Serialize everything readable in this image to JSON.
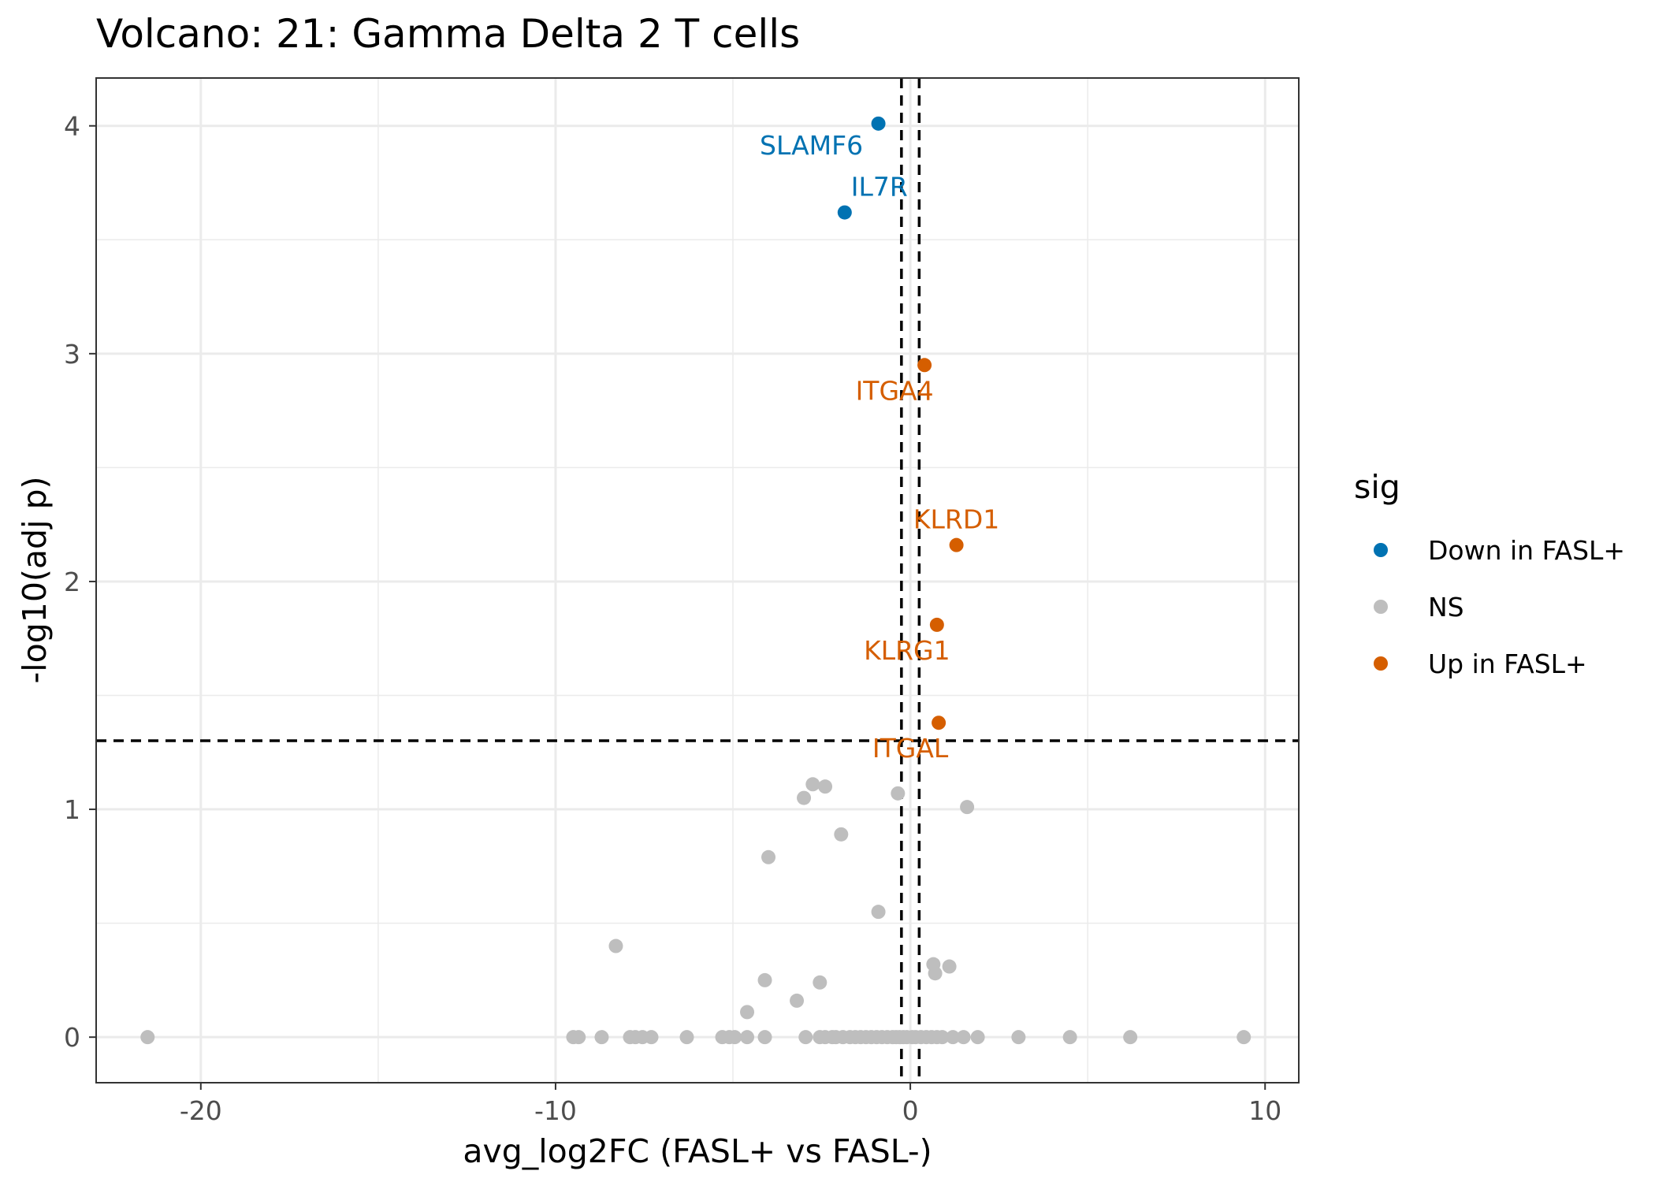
{
  "chart_data": {
    "type": "scatter",
    "title": "Volcano: 21: Gamma Delta 2 T cells",
    "xlabel": "avg_log2FC (FASL+ vs FASL-)",
    "ylabel": "-log10(adj p)",
    "xlim": [
      -22.95,
      10.95
    ],
    "ylim": [
      -0.2,
      4.21
    ],
    "x_ticks": [
      -20,
      -10,
      0,
      10
    ],
    "x_tick_labels": [
      "-20",
      "-10",
      "0",
      "10"
    ],
    "y_ticks": [
      0,
      1,
      2,
      3,
      4
    ],
    "y_tick_labels": [
      "0",
      "1",
      "2",
      "3",
      "4"
    ],
    "grid": true,
    "thresholds": {
      "log2fc": [
        -0.25,
        0.25
      ],
      "neg_log10_p": 1.301
    },
    "legend": {
      "title": "sig",
      "position": "right"
    },
    "colors": {
      "Down in FASL+": "#0072B2",
      "NS": "#BEBEBE",
      "Up in FASL+": "#D55E00",
      "gridline": "#EBEBEB",
      "panel_border": "#333333",
      "threshold_line": "#000000"
    },
    "series": [
      {
        "name": "Down in FASL+",
        "points": [
          {
            "x": -0.9,
            "y": 4.01,
            "label": "SLAMF6"
          },
          {
            "x": -1.85,
            "y": 3.62,
            "label": "IL7R"
          }
        ]
      },
      {
        "name": "NS",
        "points": [
          {
            "x": -21.5,
            "y": 0
          },
          {
            "x": -9.5,
            "y": 0
          },
          {
            "x": -9.35,
            "y": 0
          },
          {
            "x": -8.7,
            "y": 0
          },
          {
            "x": -7.9,
            "y": 0
          },
          {
            "x": -7.75,
            "y": 0
          },
          {
            "x": -7.55,
            "y": 0
          },
          {
            "x": -7.3,
            "y": 0
          },
          {
            "x": -6.3,
            "y": 0
          },
          {
            "x": -5.3,
            "y": 0
          },
          {
            "x": -5.1,
            "y": 0
          },
          {
            "x": -4.95,
            "y": 0
          },
          {
            "x": -4.6,
            "y": 0
          },
          {
            "x": -4.1,
            "y": 0
          },
          {
            "x": -2.95,
            "y": 0
          },
          {
            "x": -2.55,
            "y": 0
          },
          {
            "x": -2.4,
            "y": 0
          },
          {
            "x": -2.2,
            "y": 0
          },
          {
            "x": -2.1,
            "y": 0
          },
          {
            "x": -1.9,
            "y": 0
          },
          {
            "x": -1.7,
            "y": 0
          },
          {
            "x": -1.55,
            "y": 0
          },
          {
            "x": -1.4,
            "y": 0
          },
          {
            "x": -1.25,
            "y": 0
          },
          {
            "x": -1.1,
            "y": 0
          },
          {
            "x": -0.95,
            "y": 0
          },
          {
            "x": -0.8,
            "y": 0
          },
          {
            "x": -0.65,
            "y": 0
          },
          {
            "x": -0.5,
            "y": 0
          },
          {
            "x": -0.4,
            "y": 0
          },
          {
            "x": -0.3,
            "y": 0
          },
          {
            "x": -0.2,
            "y": 0
          },
          {
            "x": -0.1,
            "y": 0
          },
          {
            "x": 0.05,
            "y": 0
          },
          {
            "x": 0.15,
            "y": 0
          },
          {
            "x": 0.3,
            "y": 0
          },
          {
            "x": 0.45,
            "y": 0
          },
          {
            "x": 0.6,
            "y": 0
          },
          {
            "x": 0.75,
            "y": 0
          },
          {
            "x": 0.9,
            "y": 0
          },
          {
            "x": 1.2,
            "y": 0
          },
          {
            "x": 1.5,
            "y": 0
          },
          {
            "x": 1.9,
            "y": 0
          },
          {
            "x": 3.05,
            "y": 0
          },
          {
            "x": 4.5,
            "y": 0
          },
          {
            "x": 6.2,
            "y": 0
          },
          {
            "x": 9.4,
            "y": 0
          },
          {
            "x": -4.6,
            "y": 0.11
          },
          {
            "x": -3.2,
            "y": 0.16
          },
          {
            "x": -4.1,
            "y": 0.25
          },
          {
            "x": -2.55,
            "y": 0.24
          },
          {
            "x": 0.65,
            "y": 0.32
          },
          {
            "x": 0.7,
            "y": 0.28
          },
          {
            "x": 1.1,
            "y": 0.31
          },
          {
            "x": -8.3,
            "y": 0.4
          },
          {
            "x": -0.9,
            "y": 0.55
          },
          {
            "x": -4.0,
            "y": 0.79
          },
          {
            "x": -1.95,
            "y": 0.89
          },
          {
            "x": -3.0,
            "y": 1.05
          },
          {
            "x": -2.75,
            "y": 1.11
          },
          {
            "x": -2.4,
            "y": 1.1
          },
          {
            "x": -0.35,
            "y": 1.07
          },
          {
            "x": 1.6,
            "y": 1.01
          }
        ]
      },
      {
        "name": "Up in FASL+",
        "points": [
          {
            "x": 0.4,
            "y": 2.95,
            "label": "ITGA4"
          },
          {
            "x": 1.3,
            "y": 2.16,
            "label": "KLRD1"
          },
          {
            "x": 0.75,
            "y": 1.81,
            "label": "KLRG1"
          },
          {
            "x": 0.8,
            "y": 1.38,
            "label": "ITGAL"
          }
        ]
      }
    ]
  }
}
